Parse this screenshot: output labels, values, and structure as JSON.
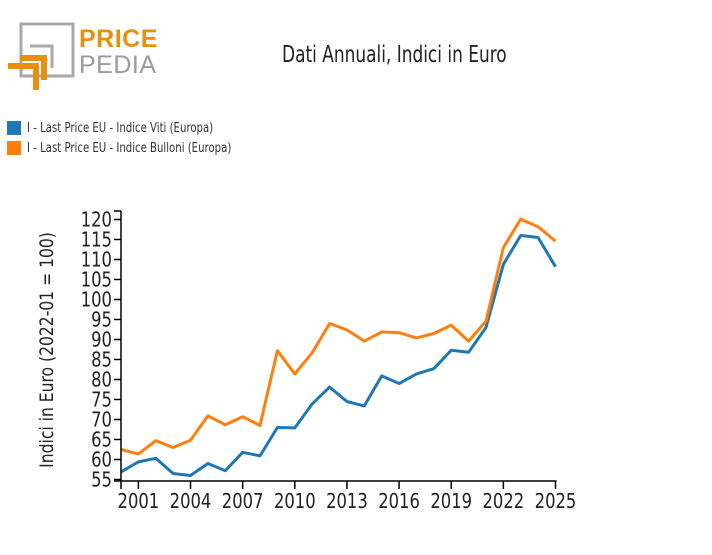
{
  "logo": {
    "line1": "PRICE",
    "line2": "PEDIA"
  },
  "chart_data": {
    "type": "line",
    "title": "Dati Annuali, Indici in Euro",
    "xlabel": "",
    "ylabel": "Indici in Euro (2022-01 = 100)",
    "xlim": [
      2000,
      2025
    ],
    "ylim": [
      55,
      120
    ],
    "x_ticks": [
      2001,
      2004,
      2007,
      2010,
      2013,
      2016,
      2019,
      2022,
      2025
    ],
    "y_ticks": [
      55,
      60,
      65,
      70,
      75,
      80,
      85,
      90,
      95,
      100,
      105,
      110,
      115,
      120
    ],
    "grid": false,
    "legend_position": "top-left",
    "x": [
      2000,
      2001,
      2002,
      2003,
      2004,
      2005,
      2006,
      2007,
      2008,
      2009,
      2010,
      2011,
      2012,
      2013,
      2014,
      2015,
      2016,
      2017,
      2018,
      2019,
      2020,
      2021,
      2022,
      2023,
      2024,
      2025
    ],
    "series": [
      {
        "name": "I - Last Price EU - Indice Viti (Europa)",
        "color": "#1f77b4",
        "values": [
          56.9,
          59.4,
          60.3,
          56.5,
          56.0,
          59.0,
          57.2,
          61.8,
          60.9,
          68.0,
          67.9,
          73.9,
          78.1,
          74.5,
          73.4,
          80.9,
          79.0,
          81.4,
          82.7,
          87.3,
          86.8,
          93.0,
          108.8,
          116.0,
          115.5,
          108.2
        ]
      },
      {
        "name": "I - Last Price EU - Indice Bulloni (Europa)",
        "color": "#ff7f0e",
        "values": [
          62.5,
          61.4,
          64.7,
          63.0,
          64.8,
          70.9,
          68.7,
          70.7,
          68.5,
          87.2,
          81.4,
          86.7,
          94.0,
          92.4,
          89.6,
          91.9,
          91.7,
          90.4,
          91.5,
          93.6,
          89.6,
          94.6,
          113.0,
          120.1,
          118.2,
          114.6
        ]
      }
    ]
  }
}
